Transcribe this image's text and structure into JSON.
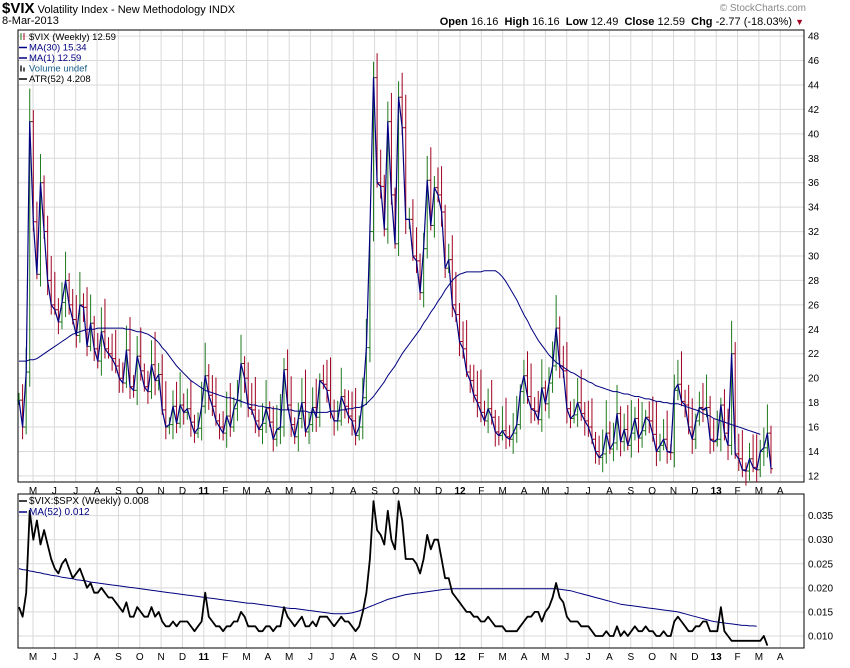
{
  "header": {
    "symbol": "$VIX",
    "name": "Volatility Index - New Methodology",
    "exchange": "INDX",
    "date": "8-Mar-2013",
    "brand": "© StockCharts.com",
    "open_label": "Open",
    "open": "16.16",
    "high_label": "High",
    "high": "16.16",
    "low_label": "Low",
    "low": "12.49",
    "close_label": "Close",
    "close": "12.59",
    "chg_label": "Chg",
    "chg": "-2.77 (-18.03%)"
  },
  "legend_top": [
    {
      "text": "$VIX (Weekly) 12.59",
      "color": "#000000",
      "swatch": "ohlc"
    },
    {
      "text": "MA(30) 15.34",
      "color": "#000080",
      "swatch": "line"
    },
    {
      "text": "MA(1) 12.59",
      "color": "#000080",
      "swatch": "line"
    },
    {
      "text": "Volume undef",
      "color": "#1a5e8a",
      "swatch": "bars"
    },
    {
      "text": "ATR(52) 4.208",
      "color": "#000000",
      "swatch": "line"
    }
  ],
  "legend_bottom": [
    {
      "text": "$VIX:$SPX (Weekly) 0.008",
      "color": "#000000"
    },
    {
      "text": "MA(52) 0.012",
      "color": "#000080"
    }
  ],
  "colors": {
    "up": "#1e7a1e",
    "down": "#a00020",
    "ma": "#000080",
    "ratio": "#000000",
    "grid": "#d9d9d9",
    "frame": "#000000"
  },
  "chart_data": [
    {
      "type": "line",
      "title": "$VIX Volatility Index - New Methodology (Weekly)",
      "x_tick_labels": [
        "M",
        "J",
        "J",
        "A",
        "S",
        "O",
        "N",
        "D",
        "11",
        "F",
        "M",
        "A",
        "M",
        "J",
        "J",
        "A",
        "S",
        "O",
        "N",
        "D",
        "12",
        "F",
        "M",
        "A",
        "M",
        "J",
        "J",
        "A",
        "S",
        "O",
        "N",
        "D",
        "13",
        "F",
        "M",
        "A"
      ],
      "y_ticks": [
        12,
        14,
        16,
        18,
        20,
        22,
        24,
        26,
        28,
        30,
        32,
        34,
        36,
        38,
        40,
        42,
        44,
        46,
        48
      ],
      "ylim": [
        11.5,
        48.5
      ],
      "log_scale": false,
      "grid": true,
      "series": [
        {
          "name": "MA(1)",
          "x_start": "2010-04-30",
          "interval": "weekly",
          "values": [
            18.2,
            16.0,
            20.5,
            41.0,
            32.8,
            28.5,
            36.0,
            32.0,
            28.0,
            26.0,
            25.6,
            24.6,
            26.2,
            28.0,
            26.0,
            24.8,
            23.5,
            26.0,
            25.8,
            22.6,
            24.5,
            22.4,
            21.4,
            23.8,
            22.4,
            22.0,
            21.6,
            21.0,
            20.0,
            19.6,
            22.3,
            19.3,
            19.0,
            21.8,
            20.6,
            19.3,
            18.9,
            21.1,
            19.8,
            20.3,
            17.4,
            16.0,
            16.2,
            17.7,
            16.3,
            17.8,
            17.2,
            17.5,
            16.4,
            15.5,
            15.9,
            17.7,
            20.2,
            18.6,
            17.7,
            16.5,
            16.0,
            15.5,
            16.9,
            16.0,
            17.5,
            18.2,
            21.2,
            20.0,
            17.6,
            17.4,
            16.5,
            15.8,
            16.3,
            17.5,
            16.4,
            15.0,
            15.8,
            16.0,
            20.7,
            17.8,
            16.2,
            15.2,
            16.7,
            18.0,
            15.6,
            16.2,
            17.6,
            16.8,
            19.8,
            19.5,
            19.0,
            17.3,
            16.5,
            16.5,
            18.5,
            17.7,
            16.9,
            16.5,
            15.3,
            16.0,
            18.4,
            22.5,
            32.0,
            44.6,
            36.0,
            35.7,
            32.2,
            41.0,
            35.0,
            31.0,
            43.0,
            40.5,
            33.0,
            33.0,
            30.0,
            29.6,
            27.0,
            30.6,
            36.2,
            32.5,
            35.6,
            35.0,
            33.6,
            29.0,
            29.7,
            26.0,
            25.2,
            23.0,
            22.4,
            20.5,
            19.8,
            18.6,
            18.0,
            17.2,
            16.5,
            17.5,
            16.8,
            15.6,
            15.3,
            15.7,
            15.2,
            15.0,
            15.5,
            16.2,
            18.9,
            20.2,
            18.5,
            17.5,
            17.3,
            16.6,
            19.2,
            17.9,
            19.6,
            21.0,
            24.1,
            21.0,
            20.6,
            17.5,
            16.7,
            17.0,
            18.0,
            17.1,
            16.5,
            16.0,
            15.0,
            14.0,
            13.5,
            13.8,
            15.5,
            14.2,
            14.7,
            17.1,
            14.8,
            15.8,
            14.5,
            15.5,
            16.7,
            15.1,
            15.7,
            16.8,
            16.5,
            15.4,
            14.0,
            14.5,
            15.0,
            14.0,
            13.9,
            19.0,
            19.5,
            18.1,
            17.8,
            16.0,
            15.0,
            16.5,
            17.6,
            17.4,
            17.6,
            15.0,
            14.8,
            15.0,
            17.8,
            15.5,
            14.5,
            22.0,
            13.8,
            13.4,
            12.5,
            12.4,
            13.4,
            12.7,
            12.5,
            14.0,
            14.3,
            15.5,
            12.59
          ],
          "color": "#000080"
        },
        {
          "name": "MA(30)",
          "x_start": "2010-04-30",
          "interval": "weekly",
          "values": [
            21.4,
            21.4,
            21.4,
            21.5,
            21.5,
            21.6,
            21.8,
            22.0,
            22.2,
            22.4,
            22.6,
            22.8,
            23.0,
            23.2,
            23.4,
            23.6,
            23.7,
            23.8,
            23.9,
            24.0,
            24.0,
            24.0,
            24.1,
            24.1,
            24.1,
            24.1,
            24.1,
            24.1,
            24.1,
            24.1,
            24.0,
            24.0,
            23.9,
            23.8,
            23.8,
            23.7,
            23.6,
            23.4,
            23.2,
            22.9,
            22.5,
            22.2,
            21.8,
            21.4,
            21.0,
            20.7,
            20.4,
            20.1,
            19.8,
            19.6,
            19.4,
            19.2,
            19.0,
            18.9,
            18.8,
            18.7,
            18.6,
            18.5,
            18.4,
            18.4,
            18.3,
            18.2,
            18.1,
            18.0,
            17.9,
            17.8,
            17.8,
            17.7,
            17.7,
            17.6,
            17.6,
            17.5,
            17.5,
            17.4,
            17.4,
            17.4,
            17.4,
            17.3,
            17.3,
            17.3,
            17.3,
            17.2,
            17.2,
            17.2,
            17.2,
            17.2,
            17.2,
            17.3,
            17.3,
            17.3,
            17.4,
            17.4,
            17.5,
            17.5,
            17.6,
            17.6,
            17.7,
            17.9,
            18.2,
            18.5,
            18.9,
            19.3,
            19.7,
            20.2,
            20.6,
            21.0,
            21.5,
            22.0,
            22.4,
            22.8,
            23.2,
            23.6,
            24.0,
            24.5,
            24.9,
            25.4,
            25.8,
            26.3,
            26.7,
            27.2,
            27.6,
            28.0,
            28.3,
            28.5,
            28.6,
            28.7,
            28.7,
            28.7,
            28.7,
            28.7,
            28.8,
            28.8,
            28.8,
            28.8,
            28.6,
            28.3,
            27.9,
            27.4,
            26.9,
            26.4,
            25.8,
            25.2,
            24.7,
            24.1,
            23.6,
            23.1,
            22.7,
            22.3,
            21.9,
            21.6,
            21.3,
            21.1,
            20.9,
            20.7,
            20.5,
            20.4,
            20.2,
            20.0,
            19.9,
            19.7,
            19.6,
            19.4,
            19.3,
            19.2,
            19.1,
            19.0,
            18.9,
            18.9,
            18.8,
            18.7,
            18.7,
            18.6,
            18.5,
            18.5,
            18.4,
            18.3,
            18.3,
            18.2,
            18.1,
            18.1,
            18.0,
            18.0,
            17.9,
            17.9,
            17.9,
            17.8,
            17.7,
            17.6,
            17.5,
            17.4,
            17.3,
            17.1,
            17.0,
            16.9,
            16.7,
            16.6,
            16.5,
            16.4,
            16.3,
            16.2,
            16.1,
            16.0,
            15.9,
            15.8,
            15.7,
            15.6,
            15.5,
            15.4
          ],
          "color": "#000080"
        }
      ]
    },
    {
      "type": "line",
      "title": "$VIX:$SPX (Weekly)",
      "x_tick_labels": [
        "M",
        "J",
        "J",
        "A",
        "S",
        "O",
        "N",
        "D",
        "11",
        "F",
        "M",
        "A",
        "M",
        "J",
        "J",
        "A",
        "S",
        "O",
        "N",
        "D",
        "12",
        "F",
        "M",
        "A",
        "M",
        "J",
        "J",
        "A",
        "S",
        "O",
        "N",
        "D",
        "13",
        "F",
        "M",
        "A"
      ],
      "y_ticks": [
        0.01,
        0.015,
        0.02,
        0.025,
        0.03,
        0.035
      ],
      "ylim": [
        0.0075,
        0.0395
      ],
      "grid": true,
      "series": [
        {
          "name": "$VIX:$SPX (Weekly)",
          "x_start": "2010-04-30",
          "interval": "weekly",
          "values": [
            0.016,
            0.014,
            0.019,
            0.036,
            0.03,
            0.034,
            0.029,
            0.032,
            0.029,
            0.026,
            0.024,
            0.023,
            0.025,
            0.026,
            0.024,
            0.022,
            0.023,
            0.024,
            0.022,
            0.02,
            0.021,
            0.019,
            0.019,
            0.02,
            0.019,
            0.018,
            0.018,
            0.017,
            0.016,
            0.015,
            0.017,
            0.014,
            0.014,
            0.016,
            0.015,
            0.014,
            0.014,
            0.016,
            0.014,
            0.015,
            0.013,
            0.012,
            0.012,
            0.013,
            0.012,
            0.013,
            0.013,
            0.013,
            0.012,
            0.011,
            0.012,
            0.013,
            0.019,
            0.014,
            0.013,
            0.012,
            0.012,
            0.011,
            0.012,
            0.012,
            0.013,
            0.013,
            0.015,
            0.014,
            0.012,
            0.012,
            0.012,
            0.011,
            0.011,
            0.012,
            0.012,
            0.011,
            0.012,
            0.012,
            0.016,
            0.014,
            0.013,
            0.012,
            0.013,
            0.014,
            0.012,
            0.012,
            0.013,
            0.012,
            0.014,
            0.014,
            0.014,
            0.013,
            0.012,
            0.013,
            0.014,
            0.013,
            0.013,
            0.012,
            0.011,
            0.012,
            0.015,
            0.019,
            0.026,
            0.038,
            0.032,
            0.031,
            0.029,
            0.036,
            0.03,
            0.028,
            0.038,
            0.034,
            0.026,
            0.026,
            0.026,
            0.025,
            0.023,
            0.026,
            0.031,
            0.028,
            0.03,
            0.03,
            0.026,
            0.022,
            0.022,
            0.019,
            0.018,
            0.017,
            0.016,
            0.015,
            0.015,
            0.014,
            0.014,
            0.013,
            0.013,
            0.014,
            0.013,
            0.012,
            0.012,
            0.012,
            0.011,
            0.011,
            0.011,
            0.011,
            0.012,
            0.013,
            0.014,
            0.014,
            0.015,
            0.015,
            0.013,
            0.015,
            0.016,
            0.018,
            0.021,
            0.018,
            0.017,
            0.014,
            0.013,
            0.013,
            0.013,
            0.012,
            0.012,
            0.012,
            0.011,
            0.01,
            0.01,
            0.01,
            0.011,
            0.01,
            0.01,
            0.012,
            0.01,
            0.011,
            0.01,
            0.011,
            0.012,
            0.011,
            0.011,
            0.012,
            0.011,
            0.011,
            0.01,
            0.01,
            0.011,
            0.01,
            0.01,
            0.013,
            0.014,
            0.013,
            0.012,
            0.011,
            0.011,
            0.012,
            0.012,
            0.013,
            0.013,
            0.011,
            0.011,
            0.011,
            0.016,
            0.011,
            0.01,
            0.009,
            0.009,
            0.009,
            0.009,
            0.009,
            0.009,
            0.009,
            0.009,
            0.009,
            0.01,
            0.008
          ],
          "color": "#000000"
        },
        {
          "name": "MA(52)",
          "x_start": "2010-04-30",
          "interval": "weekly",
          "values": [
            0.024,
            0.0238,
            0.0237,
            0.0235,
            0.0234,
            0.0232,
            0.0231,
            0.0229,
            0.0228,
            0.0226,
            0.0225,
            0.0224,
            0.0222,
            0.0221,
            0.022,
            0.0219,
            0.0217,
            0.0216,
            0.0215,
            0.0214,
            0.0212,
            0.0211,
            0.021,
            0.0209,
            0.0208,
            0.0207,
            0.0206,
            0.0205,
            0.0204,
            0.0203,
            0.0202,
            0.0201,
            0.02,
            0.0199,
            0.0198,
            0.0197,
            0.0196,
            0.0195,
            0.0194,
            0.0193,
            0.0192,
            0.0191,
            0.019,
            0.0189,
            0.0188,
            0.0187,
            0.0186,
            0.0185,
            0.0184,
            0.0183,
            0.0182,
            0.0181,
            0.018,
            0.0179,
            0.0178,
            0.0177,
            0.0176,
            0.0175,
            0.0174,
            0.0173,
            0.0172,
            0.0171,
            0.017,
            0.0169,
            0.0168,
            0.0168,
            0.0167,
            0.0166,
            0.0165,
            0.0164,
            0.0163,
            0.0162,
            0.0161,
            0.016,
            0.0159,
            0.0158,
            0.0157,
            0.0157,
            0.0156,
            0.0155,
            0.0154,
            0.0153,
            0.0152,
            0.0151,
            0.015,
            0.0149,
            0.0148,
            0.0147,
            0.0146,
            0.0146,
            0.0146,
            0.0146,
            0.0147,
            0.0148,
            0.015,
            0.0152,
            0.0155,
            0.0158,
            0.0161,
            0.0164,
            0.0167,
            0.017,
            0.0173,
            0.0176,
            0.0178,
            0.018,
            0.0182,
            0.0184,
            0.0186,
            0.0187,
            0.0188,
            0.0189,
            0.019,
            0.0191,
            0.0192,
            0.0193,
            0.0194,
            0.0195,
            0.0196,
            0.0197,
            0.0197,
            0.0198,
            0.0198,
            0.0198,
            0.0198,
            0.0198,
            0.0198,
            0.0198,
            0.0198,
            0.0198,
            0.0198,
            0.0198,
            0.0198,
            0.0198,
            0.0198,
            0.0198,
            0.0198,
            0.0198,
            0.0198,
            0.0198,
            0.0198,
            0.0198,
            0.0198,
            0.0198,
            0.0198,
            0.0198,
            0.0198,
            0.0198,
            0.0198,
            0.0198,
            0.0198,
            0.0197,
            0.0196,
            0.0195,
            0.0194,
            0.0192,
            0.019,
            0.0188,
            0.0186,
            0.0184,
            0.0182,
            0.018,
            0.0178,
            0.0176,
            0.0174,
            0.0172,
            0.017,
            0.0168,
            0.0166,
            0.0165,
            0.0164,
            0.0163,
            0.0162,
            0.0161,
            0.016,
            0.0159,
            0.0158,
            0.0157,
            0.0156,
            0.0155,
            0.0154,
            0.0153,
            0.0152,
            0.0151,
            0.015,
            0.0148,
            0.0146,
            0.0144,
            0.0142,
            0.014,
            0.0138,
            0.0136,
            0.0134,
            0.0132,
            0.013,
            0.0129,
            0.0128,
            0.0127,
            0.0126,
            0.0125,
            0.0124,
            0.0123,
            0.0122,
            0.0122,
            0.0121,
            0.0121,
            0.012
          ],
          "color": "#000080"
        }
      ]
    }
  ]
}
